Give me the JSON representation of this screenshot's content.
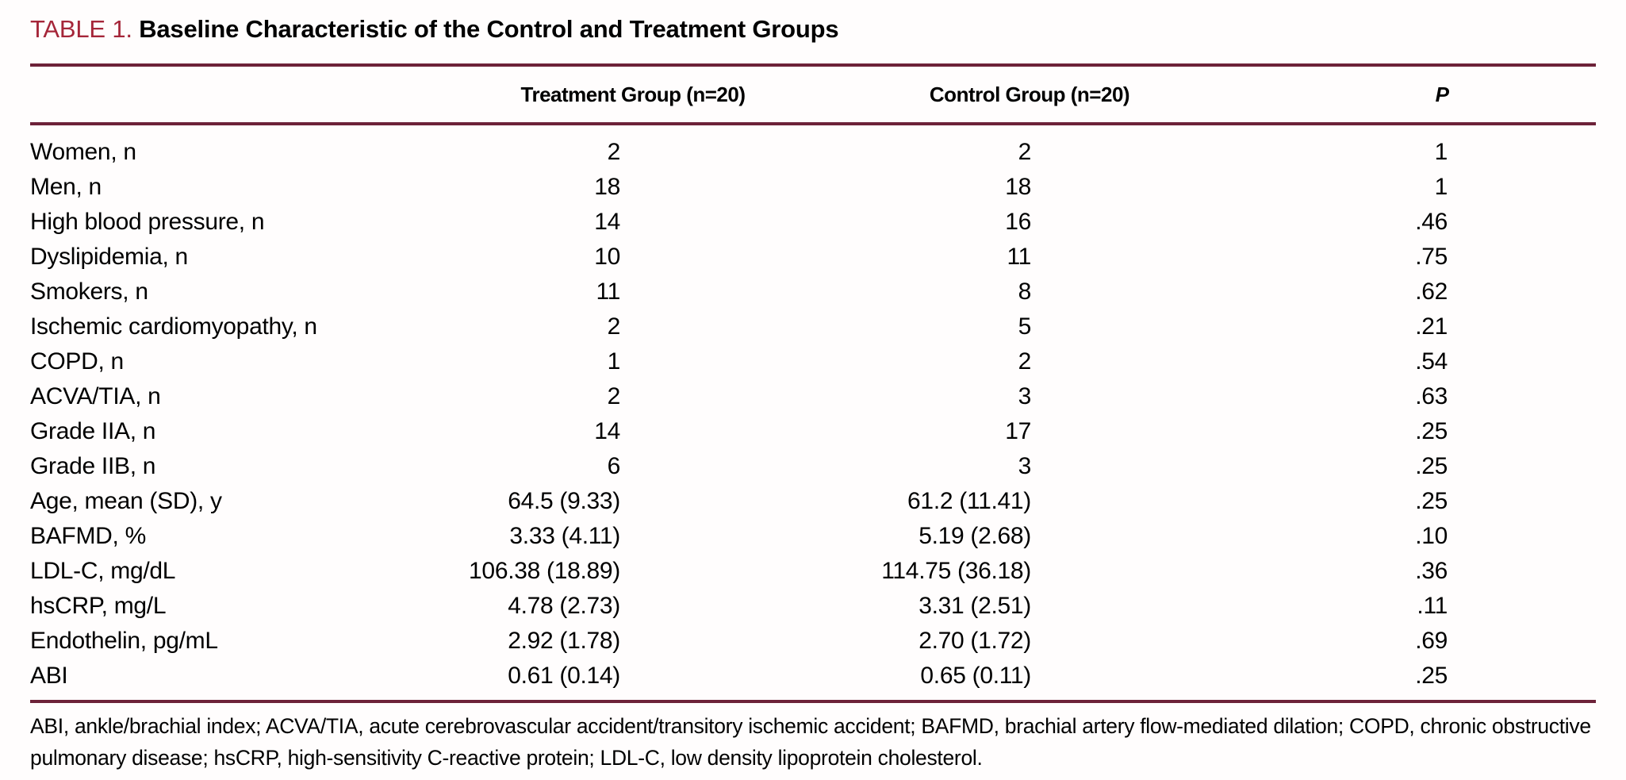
{
  "title": {
    "label": "TABLE 1.",
    "text": "Baseline Characteristic of the Control and Treatment Groups"
  },
  "colors": {
    "accent": "#a52639",
    "rule": "#6d2239",
    "text": "#000000",
    "background": "#fffdfd"
  },
  "table": {
    "columns": {
      "label": "",
      "treatment": "Treatment Group (n=20)",
      "control": "Control Group (n=20)",
      "p": "P"
    },
    "rows": [
      {
        "label": "Women, n",
        "treatment": "2",
        "control": "2",
        "p": "1"
      },
      {
        "label": "Men, n",
        "treatment": "18",
        "control": "18",
        "p": "1"
      },
      {
        "label": "High blood pressure, n",
        "treatment": "14",
        "control": "16",
        "p": ".46"
      },
      {
        "label": "Dyslipidemia, n",
        "treatment": "10",
        "control": "11",
        "p": ".75"
      },
      {
        "label": "Smokers, n",
        "treatment": "11",
        "control": "8",
        "p": ".62"
      },
      {
        "label": "Ischemic cardiomyopathy, n",
        "treatment": "2",
        "control": "5",
        "p": ".21"
      },
      {
        "label": "COPD, n",
        "treatment": "1",
        "control": "2",
        "p": ".54"
      },
      {
        "label": "ACVA/TIA, n",
        "treatment": "2",
        "control": "3",
        "p": ".63"
      },
      {
        "label": "Grade IIA, n",
        "treatment": "14",
        "control": "17",
        "p": ".25"
      },
      {
        "label": "Grade IIB, n",
        "treatment": "6",
        "control": "3",
        "p": ".25"
      },
      {
        "label": "Age, mean (SD), y",
        "treatment": "64.5 (9.33)",
        "control": "61.2 (11.41)",
        "p": ".25"
      },
      {
        "label": "BAFMD, %",
        "treatment": "3.33 (4.11)",
        "control": "5.19 (2.68)",
        "p": ".10"
      },
      {
        "label": "LDL-C, mg/dL",
        "treatment": "106.38 (18.89)",
        "control": "114.75 (36.18)",
        "p": ".36"
      },
      {
        "label": "hsCRP, mg/L",
        "treatment": "4.78 (2.73)",
        "control": "3.31 (2.51)",
        "p": ".11"
      },
      {
        "label": "Endothelin, pg/mL",
        "treatment": "2.92 (1.78)",
        "control": "2.70 (1.72)",
        "p": ".69"
      },
      {
        "label": "ABI",
        "treatment": "0.61 (0.14)",
        "control": "0.65 (0.11)",
        "p": ".25"
      }
    ]
  },
  "footnote": "ABI, ankle/brachial index; ACVA/TIA, acute cerebrovascular accident/transitory ischemic accident; BAFMD, brachial artery flow-mediated dilation; COPD, chronic obstructive pulmonary disease; hsCRP, high-sensitivity C-reactive protein; LDL-C, low density lipoprotein cholesterol."
}
